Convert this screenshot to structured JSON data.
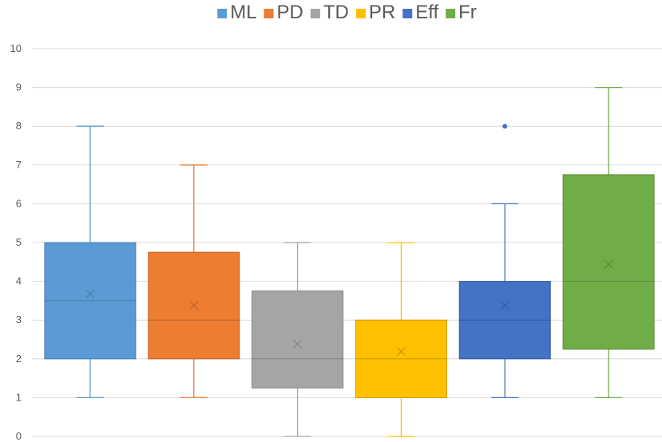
{
  "chart_data": {
    "type": "boxplot",
    "ylim": [
      0,
      10
    ],
    "yticks": [
      "0",
      "1",
      "2",
      "3",
      "4",
      "5",
      "6",
      "7",
      "8",
      "9",
      "10"
    ],
    "grid": true,
    "legend_position": "top",
    "series": [
      {
        "name": "ML",
        "color": "#5B9BD5",
        "min": 1,
        "q1": 2,
        "median": 3.5,
        "q3": 5,
        "max": 8,
        "mean": 3.67,
        "outliers": []
      },
      {
        "name": "PD",
        "color": "#ED7D31",
        "min": 1,
        "q1": 2,
        "median": 3,
        "q3": 4.75,
        "max": 7,
        "mean": 3.38,
        "outliers": []
      },
      {
        "name": "TD",
        "color": "#A5A5A5",
        "min": 0,
        "q1": 1.25,
        "median": 2,
        "q3": 3.75,
        "max": 5,
        "mean": 2.38,
        "outliers": []
      },
      {
        "name": "PR",
        "color": "#FFC000",
        "min": 0,
        "q1": 1,
        "median": 2,
        "q3": 3,
        "max": 5,
        "mean": 2.19,
        "outliers": []
      },
      {
        "name": "Eff",
        "color": "#4472C4",
        "min": 1,
        "q1": 2,
        "median": 3,
        "q3": 4,
        "max": 6,
        "mean": 3.38,
        "outliers": [
          8
        ]
      },
      {
        "name": "Fr",
        "color": "#70AD47",
        "min": 1,
        "q1": 2.25,
        "median": 4,
        "q3": 6.75,
        "max": 9,
        "mean": 4.44,
        "outliers": []
      }
    ]
  }
}
